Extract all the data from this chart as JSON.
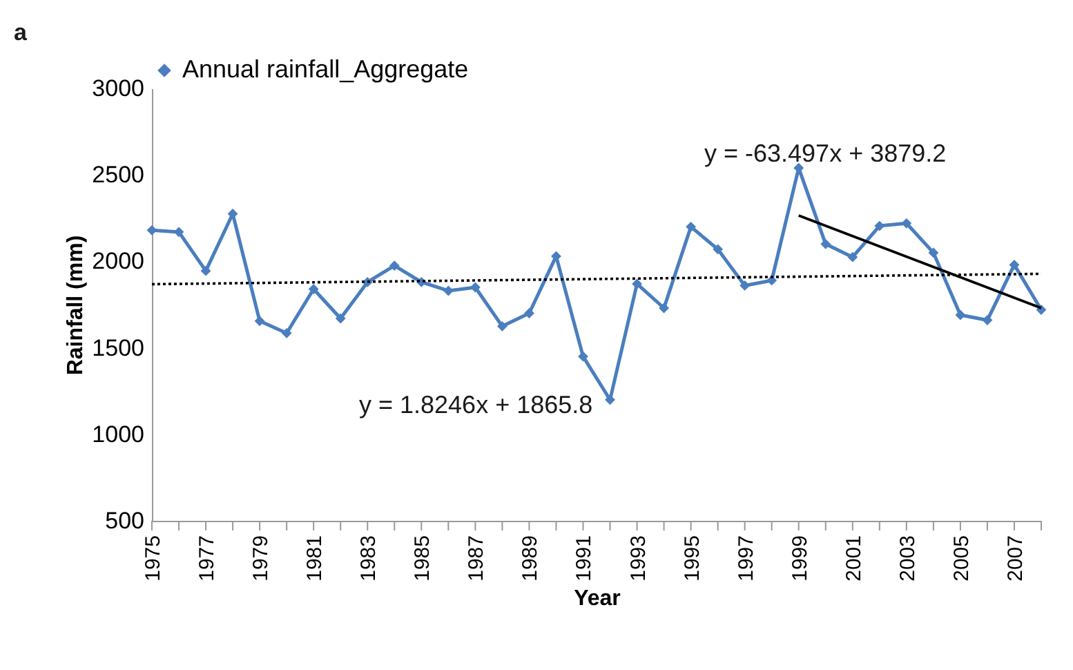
{
  "chart_data": {
    "type": "line",
    "x": [
      1975,
      1976,
      1977,
      1978,
      1979,
      1980,
      1981,
      1982,
      1983,
      1984,
      1985,
      1986,
      1987,
      1988,
      1989,
      1990,
      1991,
      1992,
      1993,
      1994,
      1995,
      1996,
      1997,
      1998,
      1999,
      2000,
      2001,
      2002,
      2003,
      2004,
      2005,
      2006,
      2007,
      2008
    ],
    "series": [
      {
        "name": "Annual rainfall_Aggregate",
        "color": "#4a7ebf",
        "marker": "diamond",
        "values": [
          2180,
          2170,
          1945,
          2275,
          1655,
          1585,
          1840,
          1670,
          1880,
          1975,
          1880,
          1830,
          1850,
          1625,
          1700,
          2030,
          1450,
          1200,
          1870,
          1730,
          2200,
          2070,
          1860,
          1890,
          2540,
          2100,
          2025,
          2205,
          2220,
          2050,
          1690,
          1660,
          1980,
          1720
        ]
      },
      {
        "type": "line",
        "color": "#000000",
        "marker": "none",
        "line_style": "dotted",
        "x": [
          1975,
          2008
        ],
        "values": [
          1868,
          1928
        ]
      },
      {
        "type": "line",
        "color": "#000000",
        "marker": "none",
        "x": [
          1999,
          2008
        ],
        "values": [
          2265,
          1730
        ]
      }
    ],
    "xlabel": "Year",
    "ylabel": "Rainfall (mm)",
    "xlim": [
      1975,
      2008
    ],
    "xticks": [
      1975,
      {
        "value": 1976,
        "label": null
      },
      1977,
      {
        "value": 1978,
        "label": null
      },
      1979,
      {
        "value": 1980,
        "label": null
      },
      1981,
      {
        "value": 1982,
        "label": null
      },
      1983,
      {
        "value": 1984,
        "label": null
      },
      1985,
      {
        "value": 1986,
        "label": null
      },
      1987,
      {
        "value": 1988,
        "label": null
      },
      1989,
      {
        "value": 1990,
        "label": null
      },
      1991,
      {
        "value": 1992,
        "label": null
      },
      1993,
      {
        "value": 1994,
        "label": null
      },
      1995,
      {
        "value": 1996,
        "label": null
      },
      1997,
      {
        "value": 1998,
        "label": null
      },
      1999,
      {
        "value": 2000,
        "label": null
      },
      2001,
      {
        "value": 2002,
        "label": null
      },
      2003,
      {
        "value": 2004,
        "label": null
      },
      2005,
      {
        "value": 2006,
        "label": null
      },
      2007,
      {
        "value": 2008,
        "label": null
      }
    ],
    "ylim": [
      500,
      3000
    ],
    "yticks": [
      500,
      1000,
      1500,
      2000,
      2500,
      3000
    ],
    "legend": "top",
    "annotations": [
      "a",
      "y = 1.8246x + 1865.8",
      "y = -63.497x + 3879.2"
    ]
  }
}
